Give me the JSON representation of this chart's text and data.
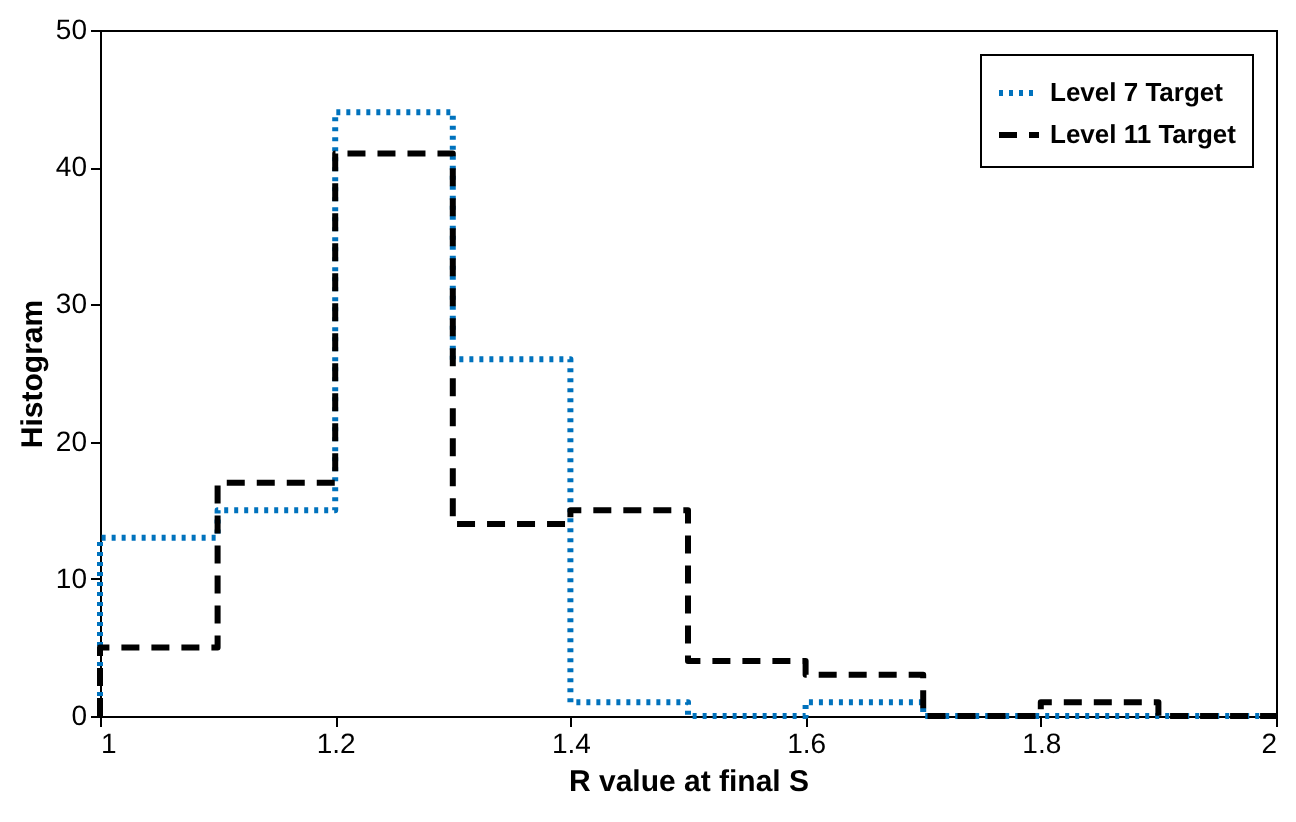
{
  "chart_data": {
    "type": "histogram",
    "xlabel": "R value at final S",
    "ylabel": "Histogram",
    "bins": [
      1,
      1.1,
      1.2,
      1.3,
      1.4,
      1.5,
      1.6,
      1.7,
      1.8,
      1.9,
      2
    ],
    "series": [
      {
        "name": "Level 7 Target",
        "color": "#0072bd",
        "line_style": "dotted",
        "values": [
          13,
          15,
          44,
          26,
          1,
          0,
          1,
          0,
          0,
          0
        ]
      },
      {
        "name": "Level 11 Target",
        "color": "#000000",
        "line_style": "dashed",
        "values": [
          5,
          17,
          41,
          14,
          15,
          4,
          3,
          0,
          1,
          0
        ]
      }
    ],
    "xlim": [
      1,
      2
    ],
    "xticks": [
      1,
      1.2,
      1.4,
      1.6,
      1.8,
      2
    ],
    "ylim": [
      0,
      50
    ],
    "yticks": [
      0,
      10,
      20,
      30,
      40,
      50
    ],
    "grid": false,
    "legend": "top right"
  }
}
